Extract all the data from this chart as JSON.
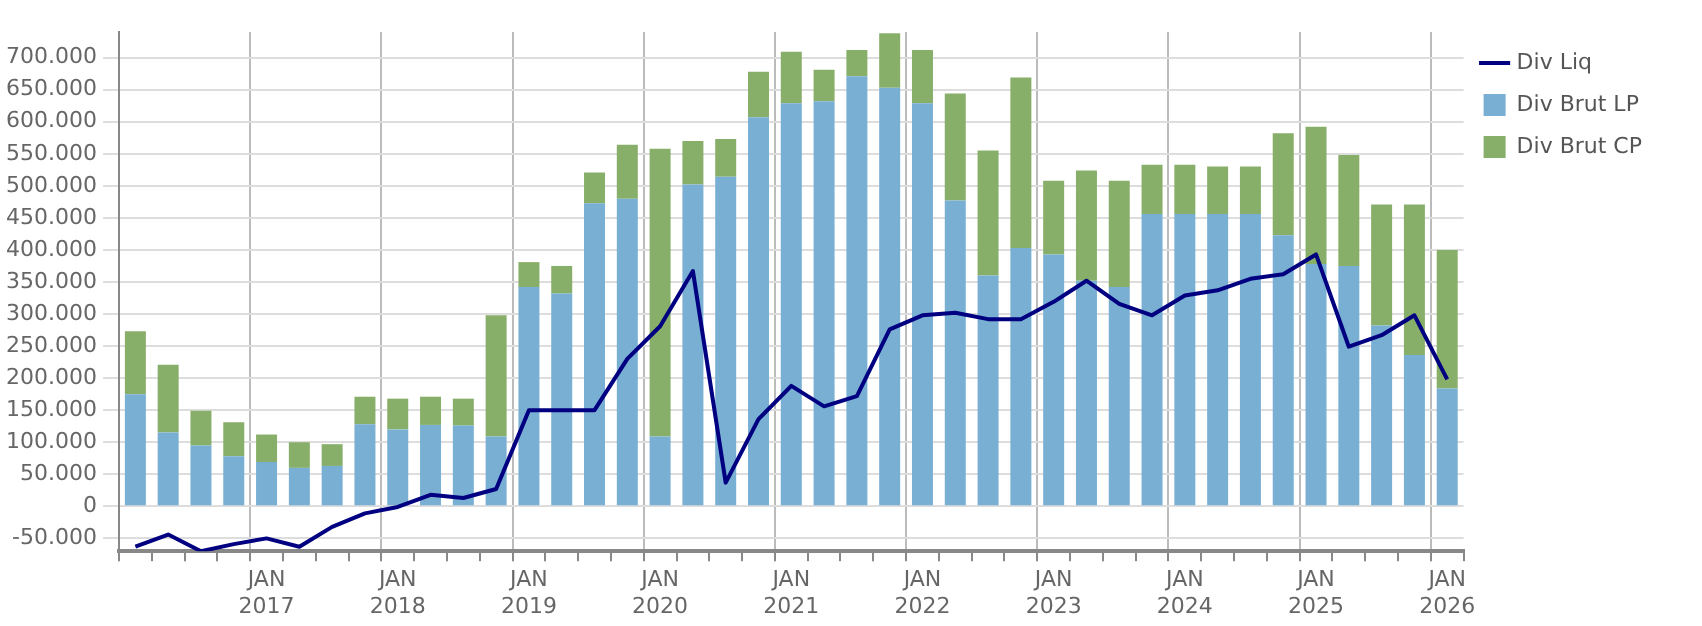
{
  "chart_data": {
    "type": "bar",
    "stacked": true,
    "categories": [
      null,
      null,
      null,
      null,
      "JAN\n2017",
      null,
      null,
      null,
      "JAN\n2018",
      null,
      null,
      null,
      "JAN\n2019",
      null,
      null,
      null,
      "JAN\n2020",
      null,
      null,
      null,
      "JAN\n2021",
      null,
      null,
      null,
      "JAN\n2022",
      null,
      null,
      null,
      "JAN\n2023",
      null,
      null,
      null,
      "JAN\n2024",
      null,
      null,
      null,
      "JAN\n2025",
      null,
      null,
      null,
      "JAN\n2026"
    ],
    "series": [
      {
        "name": "Div Brut LP",
        "color": "#78afd3",
        "values": [
          175000,
          115000,
          95000,
          78000,
          69000,
          60000,
          63000,
          128000,
          120000,
          127000,
          126000,
          109000,
          342000,
          332000,
          473000,
          480000,
          109000,
          502000,
          514000,
          607000,
          629000,
          632000,
          671000,
          653000,
          629000,
          477000,
          360000,
          403000,
          393000,
          352000,
          342000,
          456000,
          456000,
          456000,
          456000,
          423000,
          378000,
          375000,
          282000,
          236000,
          184000
        ]
      },
      {
        "name": "Div Brut CP",
        "color": "#88af6a",
        "values": [
          98000,
          106000,
          54000,
          53000,
          43000,
          40000,
          34000,
          43000,
          48000,
          44000,
          42000,
          189000,
          39000,
          43000,
          48000,
          84000,
          449000,
          68000,
          59000,
          71000,
          80000,
          49000,
          41000,
          85000,
          83000,
          167000,
          195000,
          266000,
          115000,
          172000,
          166000,
          77000,
          77000,
          74000,
          74000,
          159000,
          214000,
          173000,
          189000,
          235000,
          216000
        ]
      },
      {
        "name": "Div Liq",
        "type": "line",
        "color": "#000080",
        "values": [
          -63000,
          -44000,
          -70000,
          -59000,
          -50000,
          -63000,
          -32000,
          -11000,
          -1000,
          18000,
          13000,
          27000,
          150000,
          150000,
          150000,
          230000,
          281000,
          367000,
          37000,
          136000,
          188000,
          156000,
          172000,
          276000,
          298000,
          302000,
          292000,
          292000,
          319000,
          352000,
          316000,
          298000,
          329000,
          337000,
          355000,
          362000,
          393000,
          249000,
          267000,
          298000,
          198000
        ]
      }
    ],
    "ylim": [
      -70000,
      740000
    ],
    "yticks": [
      {
        "value": -50000,
        "label": "-50.000"
      },
      {
        "value": 0,
        "label": "0"
      },
      {
        "value": 50000,
        "label": "50.000"
      },
      {
        "value": 100000,
        "label": "100.000"
      },
      {
        "value": 150000,
        "label": "150.000"
      },
      {
        "value": 200000,
        "label": "200.000"
      },
      {
        "value": 250000,
        "label": "250.000"
      },
      {
        "value": 300000,
        "label": "300.000"
      },
      {
        "value": 350000,
        "label": "350.000"
      },
      {
        "value": 400000,
        "label": "400.000"
      },
      {
        "value": 450000,
        "label": "450.000"
      },
      {
        "value": 500000,
        "label": "500.000"
      },
      {
        "value": 550000,
        "label": "550.000"
      },
      {
        "value": 600000,
        "label": "600.000"
      },
      {
        "value": 650000,
        "label": "650.000"
      },
      {
        "value": 700000,
        "label": "700.000"
      }
    ],
    "grid": true,
    "legend": "top right",
    "marker": "none"
  }
}
